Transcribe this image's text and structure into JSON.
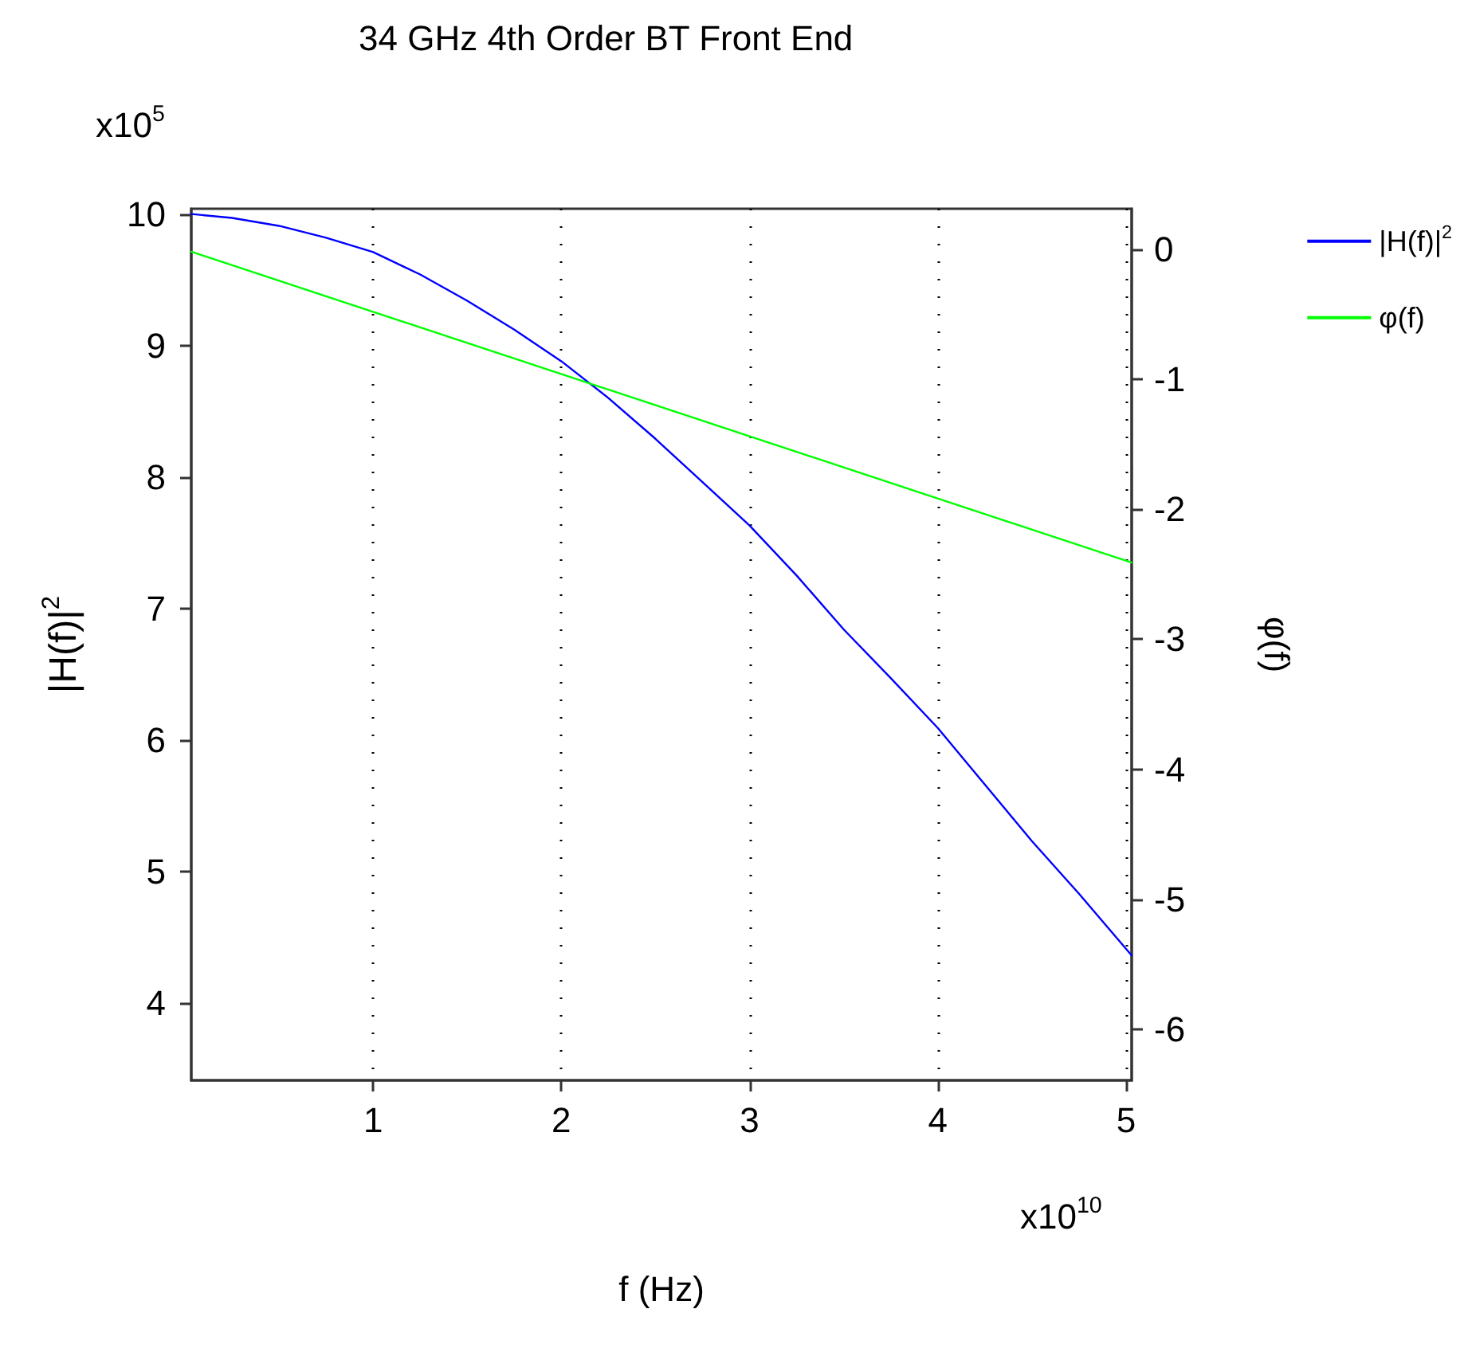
{
  "chart_data": {
    "type": "line",
    "title": "34 GHz 4th Order BT Front End",
    "xlabel": "f (Hz)",
    "ylabel": "|H(f)|$^{2}$",
    "y2label": "φ(f)",
    "annotations": [
      "x10$^{5}$",
      "x10$^{10}$"
    ],
    "x": [
      0.034,
      0.25,
      0.5,
      0.75,
      1,
      1.25,
      1.5,
      1.75,
      2,
      2.25,
      2.5,
      2.75,
      3,
      3.25,
      3.5,
      3.75,
      4,
      4.25,
      4.5,
      4.75,
      5.03
    ],
    "series": [
      {
        "name": "|H(f)|$^{2}$",
        "color": "#0000ff",
        "values": [
          10.0,
          9.97,
          9.91,
          9.82,
          9.71,
          9.54,
          9.34,
          9.12,
          8.88,
          8.6,
          8.29,
          7.96,
          7.63,
          7.25,
          6.84,
          6.47,
          6.09,
          5.66,
          5.23,
          4.83,
          4.36
        ]
      },
      {
        "name": "φ(f)",
        "color": "#00ff00",
        "axis": "y2",
        "x": [
          0.034,
          5.03
        ],
        "values": [
          -0.02,
          -2.41
        ]
      }
    ],
    "xlim": [
      0.034,
      5.03
    ],
    "xticks": [
      1,
      2,
      3,
      4,
      5
    ],
    "ylim": [
      3.41,
      10.04
    ],
    "yticks": [
      4,
      5,
      6,
      7,
      8,
      9,
      10
    ],
    "y2lim": [
      -6.39,
      0.31
    ],
    "y2ticks": [
      -6,
      -5,
      -4,
      -3,
      -2,
      -1,
      0
    ],
    "grid": "x",
    "legend": "top right",
    "marker": "none",
    "line_style": "solid"
  }
}
